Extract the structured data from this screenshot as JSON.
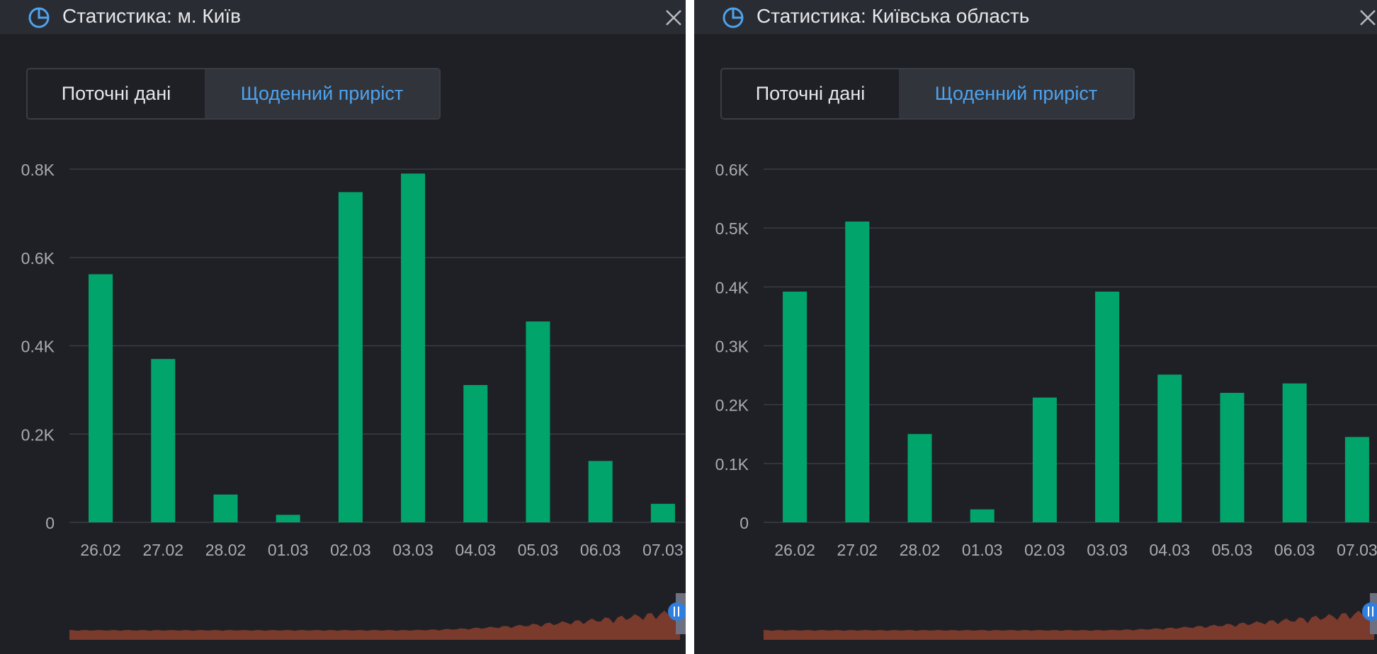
{
  "colors": {
    "bar": "#01a56b",
    "accent": "#4da3ee",
    "grid": "#3a3c44",
    "tick_text": "#a9abb2",
    "mini_fill": "#7a3a2c"
  },
  "panels": [
    {
      "title": "Статистика: м. Київ",
      "icon": "pie-chart-icon",
      "close_icon": "close-icon",
      "tabs": [
        {
          "label": "Поточні дані",
          "active": false
        },
        {
          "label": "Щоденний приріст",
          "active": true
        }
      ]
    },
    {
      "title": "Статистика: Київська область",
      "icon": "pie-chart-icon",
      "close_icon": "close-icon",
      "tabs": [
        {
          "label": "Поточні дані",
          "active": false
        },
        {
          "label": "Щоденний приріст",
          "active": true
        }
      ]
    }
  ],
  "chart_data": [
    {
      "type": "bar",
      "categories": [
        "26.02",
        "27.02",
        "28.02",
        "01.03",
        "02.03",
        "03.03",
        "04.03",
        "05.03",
        "06.03",
        "07.03"
      ],
      "values": [
        562,
        370,
        63,
        17,
        748,
        790,
        311,
        455,
        139,
        42
      ],
      "ylim": [
        0,
        800
      ],
      "yticks": [
        0,
        200,
        400,
        600,
        800
      ],
      "yticklabels": [
        "0",
        "0.2K",
        "0.4K",
        "0.6K",
        "0.8K"
      ],
      "grid": true,
      "legend": "none"
    },
    {
      "type": "bar",
      "categories": [
        "26.02",
        "27.02",
        "28.02",
        "01.03",
        "02.03",
        "03.03",
        "04.03",
        "05.03",
        "06.03",
        "07.03"
      ],
      "values": [
        392,
        511,
        150,
        22,
        212,
        392,
        251,
        220,
        236,
        145
      ],
      "ylim": [
        0,
        600
      ],
      "yticks": [
        0,
        100,
        200,
        300,
        400,
        500,
        600
      ],
      "yticklabels": [
        "0",
        "0.1K",
        "0.2K",
        "0.3K",
        "0.4K",
        "0.5K",
        "0.6K"
      ],
      "grid": true,
      "legend": "none"
    }
  ]
}
